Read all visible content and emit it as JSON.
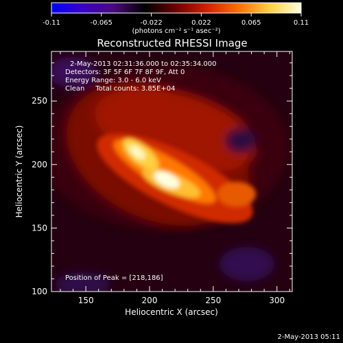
{
  "chart_data": {
    "type": "heatmap",
    "title": "Reconstructed RHESSI Image",
    "xlabel": "Heliocentric X (arcsec)",
    "ylabel": "Heliocentric Y (arcsec)",
    "x_ticks": [
      150,
      200,
      250,
      300
    ],
    "y_ticks": [
      100,
      150,
      200,
      250
    ],
    "xlim": [
      123,
      312
    ],
    "ylim": [
      100,
      289
    ],
    "colorbar": {
      "ticks": [
        "-0.11",
        "-0.065",
        "-0.022",
        "0.022",
        "0.065",
        "0.11"
      ],
      "range": [
        -0.11,
        0.11
      ],
      "unit_label": "(photons cm⁻² s⁻¹ asec⁻²)",
      "colormap": [
        "#0000ff",
        "#3b00c8",
        "#4a0a7a",
        "#000000",
        "#6e0000",
        "#d62000",
        "#ff7000",
        "#ffd040",
        "#ffffe0"
      ]
    },
    "info_lines": [
      "2-May-2013 02:31:36.000 to 02:35:34.000",
      "Detectors: 3F 5F 6F 7F 8F 9F, Att 0",
      "Energy Range: 3.0 - 6.0 keV",
      "Clean     Total counts: 3.85E+04"
    ],
    "peak_label": "Position of Peak = [218,186]",
    "peak": [
      218,
      186
    ],
    "source_ridge": [
      [
        172,
        223
      ],
      [
        195,
        204
      ],
      [
        218,
        186
      ],
      [
        242,
        173
      ],
      [
        275,
        172
      ]
    ]
  },
  "footer": {
    "date": "2-May-2013 05:11"
  }
}
